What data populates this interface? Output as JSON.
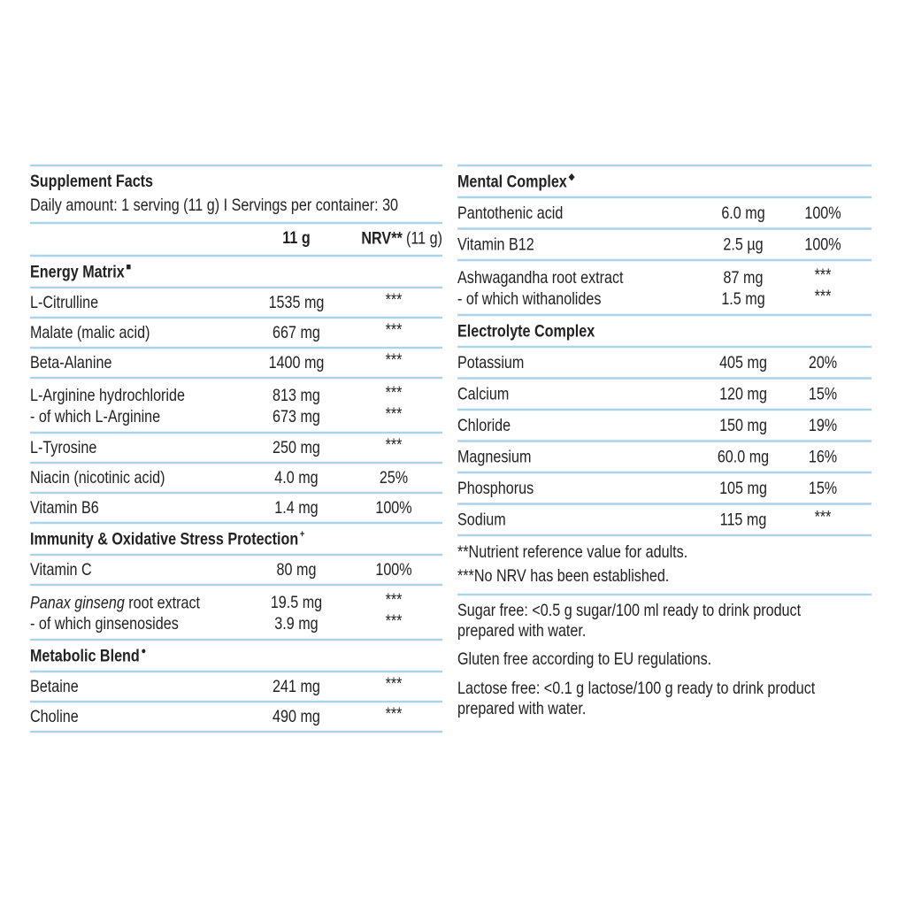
{
  "left": {
    "title": "Supplement Facts",
    "serving": "Daily amount: 1 serving (11 g) I Servings per container: 30",
    "header": {
      "amount": "11 g",
      "nrv": "NRV**",
      "nrv_unit": "(11 g)"
    },
    "sections": [
      {
        "heading": "Energy Matrix",
        "marker": "■",
        "rows": [
          [
            {
              "name": "L-Citrulline",
              "amount": "1535 mg",
              "nrv": "***"
            }
          ],
          [
            {
              "name": "Malate (malic acid)",
              "amount": "667 mg",
              "nrv": "***"
            }
          ],
          [
            {
              "name": "Beta-Alanine",
              "amount": "1400 mg",
              "nrv": "***"
            }
          ],
          [
            {
              "name": "L-Arginine hydrochloride",
              "amount": "813 mg",
              "nrv": "***"
            },
            {
              "name": "- of which L-Arginine",
              "amount": "673 mg",
              "nrv": "***"
            }
          ],
          [
            {
              "name": "L-Tyrosine",
              "amount": "250 mg",
              "nrv": "***"
            }
          ],
          [
            {
              "name": "Niacin (nicotinic acid)",
              "amount": "4.0 mg",
              "nrv": "25%"
            }
          ],
          [
            {
              "name": "Vitamin B6",
              "amount": "1.4 mg",
              "nrv": "100%"
            }
          ]
        ]
      },
      {
        "heading": "Immunity & Oxidative Stress Protection",
        "marker": "+",
        "rows": [
          [
            {
              "name": "Vitamin C",
              "amount": "80 mg",
              "nrv": "100%"
            }
          ],
          [
            {
              "name_italic": "Panax ginseng",
              "name": " root extract",
              "amount": "19.5 mg",
              "nrv": "***"
            },
            {
              "name": "- of which ginsenosides",
              "amount": "3.9 mg",
              "nrv": "***"
            }
          ]
        ]
      },
      {
        "heading": "Metabolic Blend",
        "marker": "●",
        "rows": [
          [
            {
              "name": "Betaine",
              "amount": "241 mg",
              "nrv": "***"
            }
          ],
          [
            {
              "name": "Choline",
              "amount": "490 mg",
              "nrv": "***"
            }
          ]
        ]
      }
    ]
  },
  "right": {
    "sections": [
      {
        "heading": "Mental Complex",
        "marker": "◆",
        "rows": [
          [
            {
              "name": "Pantothenic acid",
              "amount": "6.0 mg",
              "nrv": "100%"
            }
          ],
          [
            {
              "name": "Vitamin B12",
              "amount": "2.5 µg",
              "nrv": "100%"
            }
          ],
          [
            {
              "name": "Ashwagandha root extract",
              "amount": "87 mg",
              "nrv": "***"
            },
            {
              "name": "- of which withanolides",
              "amount": "1.5 mg",
              "nrv": "***"
            }
          ]
        ]
      },
      {
        "heading": "Electrolyte Complex",
        "rows": [
          [
            {
              "name": "Potassium",
              "amount": "405 mg",
              "nrv": "20%"
            }
          ],
          [
            {
              "name": "Calcium",
              "amount": "120 mg",
              "nrv": "15%"
            }
          ],
          [
            {
              "name": "Chloride",
              "amount": "150 mg",
              "nrv": "19%"
            }
          ],
          [
            {
              "name": "Magnesium",
              "amount": "60.0 mg",
              "nrv": "16%"
            }
          ],
          [
            {
              "name": "Phosphorus",
              "amount": "105 mg",
              "nrv": "15%"
            }
          ],
          [
            {
              "name": "Sodium",
              "amount": "115 mg",
              "nrv": "***"
            }
          ]
        ]
      }
    ],
    "footnotes": [
      "**Nutrient reference value for adults.",
      "***No NRV has been established."
    ],
    "notes": [
      [
        "Sugar free: <0.5 g sugar/100 ml ready to drink product",
        "prepared with water."
      ],
      [
        "Gluten free according to EU regulations."
      ],
      [
        "Lactose free: <0.1 g lactose/100 g ready to drink product",
        "prepared with water."
      ]
    ]
  }
}
